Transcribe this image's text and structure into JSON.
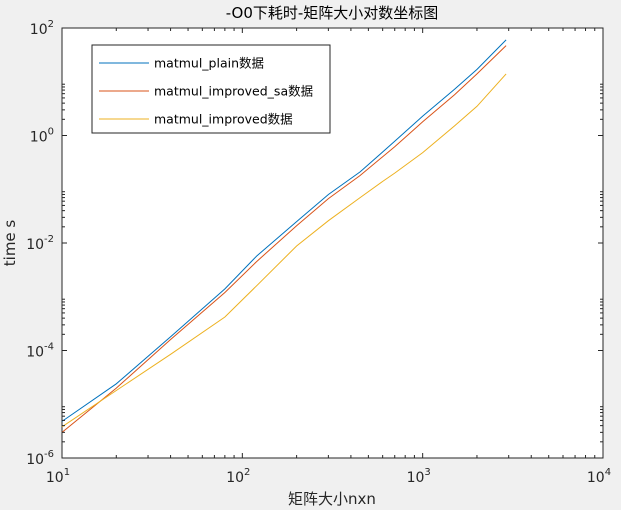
{
  "chart_data": {
    "type": "line",
    "title": "-O0下耗时-矩阵大小对数坐标图",
    "xlabel": "矩阵大小nxn",
    "ylabel": "time s",
    "xscale": "log",
    "yscale": "log",
    "xlim": [
      10,
      10000
    ],
    "ylim": [
      1e-06,
      100
    ],
    "x_ticks": [
      {
        "base": "10",
        "exp": "1"
      },
      {
        "base": "10",
        "exp": "2"
      },
      {
        "base": "10",
        "exp": "3"
      },
      {
        "base": "10",
        "exp": "4"
      }
    ],
    "y_ticks": [
      {
        "base": "10",
        "exp": "-6"
      },
      {
        "base": "10",
        "exp": "-4"
      },
      {
        "base": "10",
        "exp": "-2"
      },
      {
        "base": "10",
        "exp": "0"
      },
      {
        "base": "10",
        "exp": "2"
      }
    ],
    "grid": false,
    "legend_position": "top-left",
    "series": [
      {
        "name": "matmul_plain数据",
        "color": "#0072bd",
        "x": [
          10,
          20,
          40,
          80,
          120,
          200,
          300,
          450,
          700,
          1000,
          1500,
          2000,
          2900
        ],
        "y": [
          4.8e-06,
          2.4e-05,
          0.00018,
          0.0014,
          0.0057,
          0.025,
          0.08,
          0.21,
          0.78,
          2.3,
          7.2,
          17,
          60
        ]
      },
      {
        "name": "matmul_improved_sa数据",
        "color": "#d95319",
        "x": [
          10,
          20,
          40,
          80,
          120,
          200,
          300,
          450,
          700,
          1000,
          1500,
          2000,
          2900
        ],
        "y": [
          3e-06,
          2e-05,
          0.00016,
          0.0012,
          0.0045,
          0.021,
          0.067,
          0.18,
          0.62,
          1.8,
          5.7,
          14,
          47
        ]
      },
      {
        "name": "matmul_improved数据",
        "color": "#edb120",
        "x": [
          10,
          20,
          40,
          80,
          120,
          200,
          300,
          450,
          600,
          700,
          1000,
          1500,
          2000,
          2900
        ],
        "y": [
          3.8e-06,
          1.8e-05,
          8.5e-05,
          0.00042,
          0.0016,
          0.0088,
          0.026,
          0.07,
          0.14,
          0.2,
          0.48,
          1.5,
          3.5,
          14
        ]
      }
    ]
  }
}
